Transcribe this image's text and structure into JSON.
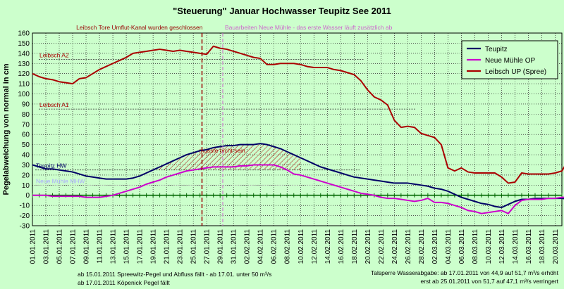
{
  "chart_data": {
    "type": "line",
    "title": "\"Steuerung\" Januar Hochwasser Teupitz See 2011",
    "ylabel": "Pegelabweichung von normal in cm",
    "xlabel": "",
    "ylim": [
      -30,
      160
    ],
    "yticks": [
      -30,
      -20,
      -10,
      0,
      10,
      20,
      30,
      40,
      50,
      60,
      70,
      80,
      90,
      100,
      110,
      120,
      130,
      140,
      150,
      160
    ],
    "xtick_labels": [
      "01.01.2011",
      "03.01.2011",
      "05.01.2011",
      "07.01.2011",
      "09.01.2011",
      "11.01.2011",
      "13.01.2011",
      "15.01.2011",
      "17.01.2011",
      "19.01.2011",
      "21.01.2011",
      "23.01.2011",
      "25.01.2011",
      "27.01.2011",
      "29.01.2011",
      "31.01.2011",
      "02.02.2011",
      "04.02.2011",
      "06.02.2011",
      "08.02.2011",
      "10.02.2011",
      "12.02.2011",
      "14.02.2011",
      "16.02.2011",
      "18.02.2011",
      "20.02.2011",
      "22.02.2011",
      "24.02.2011",
      "26.02.2011",
      "28.02.2011",
      "02.03.2011",
      "04.03.2011",
      "06.03.2011",
      "08.03.2011",
      "10.03.2011",
      "12.03.2011",
      "14.03.2011",
      "16.03.2011",
      "18.03.2011",
      "20.03.2011"
    ],
    "grid": true,
    "legend_position": "top-right",
    "series": [
      {
        "name": "Teupitz",
        "color": "#000066",
        "values": [
          30,
          28,
          26,
          26,
          25,
          24,
          23,
          21,
          19,
          18,
          17,
          16,
          16,
          16,
          16,
          17,
          19,
          22,
          25,
          28,
          31,
          34,
          37,
          40,
          42,
          44,
          45,
          47,
          48,
          49,
          49,
          50,
          50,
          50,
          51,
          50,
          48,
          46,
          43,
          40,
          37,
          34,
          31,
          28,
          26,
          24,
          22,
          20,
          18,
          17,
          16,
          15,
          14,
          13,
          12,
          12,
          12,
          11,
          10,
          9,
          7,
          6,
          4,
          1,
          -2,
          -4,
          -6,
          -8,
          -9,
          -11,
          -12,
          -9,
          -6,
          -4,
          -4,
          -3,
          -3,
          -3,
          -3,
          -3,
          -4,
          -4,
          -4,
          -4,
          -4,
          -3,
          -4,
          -5,
          -4,
          -3,
          -2,
          -1,
          -1,
          -1,
          -2,
          -2,
          -2,
          -2,
          -1,
          0,
          0
        ]
      },
      {
        "name": "Neue Mühle OP",
        "color": "#cc00cc",
        "values": [
          0,
          0,
          0,
          -1,
          -1,
          -1,
          -1,
          -1,
          -2,
          -2,
          -2,
          -1,
          0,
          2,
          4,
          6,
          8,
          11,
          13,
          15,
          18,
          20,
          22,
          24,
          25,
          26,
          27,
          28,
          28,
          28,
          28,
          29,
          29,
          30,
          30,
          30,
          30,
          28,
          25,
          21,
          20,
          18,
          16,
          14,
          12,
          10,
          8,
          6,
          4,
          2,
          1,
          0,
          -2,
          -3,
          -3,
          -4,
          -5,
          -6,
          -5,
          -3,
          -7,
          -7,
          -8,
          -10,
          -12,
          -15,
          -16,
          -18,
          -17,
          -16,
          -15,
          -18,
          -10,
          -5,
          -4,
          -4,
          -4,
          -3,
          -3,
          -2,
          -2,
          -3,
          -6,
          -7,
          -7,
          -7,
          -6,
          -6,
          -5,
          -5,
          -4,
          -3,
          -1,
          -1,
          -6,
          -7,
          -6,
          -6,
          -5,
          -4,
          -6
        ]
      },
      {
        "name": "Leibsch UP (Spree)",
        "color": "#aa0000",
        "values": [
          120,
          117,
          115,
          114,
          112,
          111,
          110,
          115,
          116,
          120,
          124,
          127,
          130,
          133,
          136,
          140,
          141,
          142,
          143,
          144,
          143,
          142,
          143,
          142,
          141,
          140,
          139,
          147,
          145,
          144,
          142,
          140,
          138,
          136,
          135,
          129,
          129,
          130,
          130,
          130,
          129,
          127,
          126,
          126,
          126,
          124,
          123,
          121,
          119,
          113,
          104,
          97,
          94,
          89,
          74,
          67,
          68,
          67,
          61,
          59,
          57,
          50,
          27,
          24,
          27,
          23,
          22,
          22,
          22,
          22,
          18,
          12,
          13,
          22,
          21,
          21,
          21,
          21,
          22,
          24,
          35,
          45,
          47
        ]
      }
    ],
    "reference_lines": [
      {
        "label": "Leibsch A2",
        "value": 134,
        "color": "#aa0000"
      },
      {
        "label": "Leibsch A1",
        "value": 85,
        "color": "#aa0000"
      },
      {
        "label": "Teupitz HW",
        "value": 25,
        "color": "#000066"
      },
      {
        "label": "Neue Mühle MHW",
        "value": 10,
        "color": "#cc00cc"
      }
    ],
    "event_lines": [
      {
        "label": "Leibsch Tore Umflut-Kanal wurden geschlossen",
        "color": "#990000"
      },
      {
        "label": "Bauarbeiten Neue Mühle - das erste Wasser läuft zusätzlich ab",
        "color": "#cc66cc"
      }
    ],
    "hatched_area_label": "müsste nicht sein",
    "notes_left": [
      "ab 15.01.2011 Spreewitz-Pegel und Abfluss fällt - ab 17.01. unter 50 m³/s",
      "ab 17.01.2011 Köpenick Pegel fällt"
    ],
    "notes_right": [
      "Talsperre Wasserabgabe: ab 17.01.2011 von 44,9 auf 51,7 m³/s erhöht",
      "erst ab 25.01.2011 von 51,7 auf 47,1 m³/s verringert"
    ]
  }
}
